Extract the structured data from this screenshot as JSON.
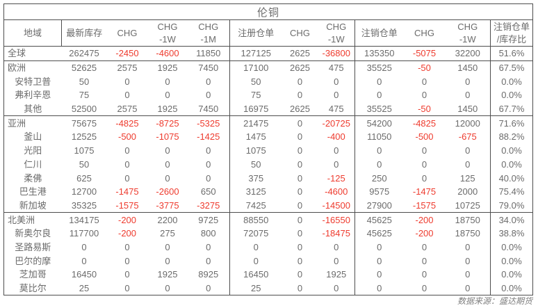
{
  "title": "伦铜",
  "source_note": "数据来源：盛达期货",
  "colors": {
    "text": "#6b6b6b",
    "negative": "#ee3b2e",
    "border": "#4d4d4d"
  },
  "chart_data": {
    "type": "table",
    "title": "伦铜",
    "columns": [
      "地域",
      "最新库存",
      "CHG",
      "CHG -1W",
      "CHG -1M",
      "注册仓单",
      "CHG",
      "CHG -1W",
      "注销仓单",
      "CHG",
      "CHG -1W",
      "注销仓单/库存比"
    ]
  },
  "table": {
    "columns": [
      {
        "label": "地域"
      },
      {
        "label": "最新库存"
      },
      {
        "label": "CHG"
      },
      {
        "label": "CHG\n-1W"
      },
      {
        "label": "CHG\n-1M"
      },
      {
        "label": "注册仓单"
      },
      {
        "label": "CHG"
      },
      {
        "label": "CHG\n-1W"
      },
      {
        "label": "注销仓单"
      },
      {
        "label": "CHG"
      },
      {
        "label": "CHG\n-1W"
      },
      {
        "label": "注销仓单\n/库存比"
      }
    ],
    "rows": [
      {
        "region": "全球",
        "level": 0,
        "section_start": false,
        "values": [
          "262475",
          "-2450",
          "-4600",
          "11850",
          "127125",
          "2625",
          "-36800",
          "135350",
          "-5075",
          "32200",
          "51.6%"
        ]
      },
      {
        "region": "欧洲",
        "level": 0,
        "section_start": true,
        "values": [
          "52625",
          "2575",
          "1925",
          "7450",
          "17100",
          "2625",
          "475",
          "35525",
          "-50",
          "1450",
          "67.5%"
        ]
      },
      {
        "region": "安特卫普",
        "level": 1,
        "section_start": false,
        "values": [
          "50",
          "0",
          "0",
          "0",
          "50",
          "0",
          "0",
          "0",
          "0",
          "0",
          "0.0%"
        ]
      },
      {
        "region": "弗利辛恩",
        "level": 1,
        "section_start": false,
        "values": [
          "75",
          "0",
          "0",
          "0",
          "75",
          "0",
          "0",
          "0",
          "0",
          "0",
          "0.0%"
        ]
      },
      {
        "region": "其他",
        "level": 1,
        "section_start": false,
        "values": [
          "52500",
          "2575",
          "1925",
          "7450",
          "16975",
          "2625",
          "475",
          "35525",
          "-50",
          "1450",
          "67.7%"
        ]
      },
      {
        "region": "亚洲",
        "level": 0,
        "section_start": true,
        "values": [
          "75675",
          "-4825",
          "-8725",
          "-5325",
          "21475",
          "0",
          "-20725",
          "54200",
          "-4825",
          "12000",
          "71.6%"
        ]
      },
      {
        "region": "釜山",
        "level": 1,
        "section_start": false,
        "values": [
          "12525",
          "-500",
          "-1075",
          "-1425",
          "1475",
          "0",
          "-400",
          "11050",
          "-500",
          "-675",
          "88.2%"
        ]
      },
      {
        "region": "光阳",
        "level": 1,
        "section_start": false,
        "values": [
          "1075",
          "0",
          "0",
          "0",
          "1075",
          "0",
          "0",
          "0",
          "0",
          "0",
          "0.0%"
        ]
      },
      {
        "region": "仁川",
        "level": 1,
        "section_start": false,
        "values": [
          "50",
          "0",
          "0",
          "0",
          "50",
          "0",
          "0",
          "0",
          "0",
          "0",
          "0.0%"
        ]
      },
      {
        "region": "柔佛",
        "level": 1,
        "section_start": false,
        "values": [
          "625",
          "0",
          "0",
          "0",
          "375",
          "0",
          "-125",
          "250",
          "0",
          "125",
          "40.0%"
        ]
      },
      {
        "region": "巴生港",
        "level": 1,
        "section_start": false,
        "values": [
          "12700",
          "-1475",
          "-2600",
          "650",
          "3125",
          "0",
          "-4600",
          "9575",
          "-1475",
          "2000",
          "75.4%"
        ]
      },
      {
        "region": "新加坡",
        "level": 1,
        "section_start": false,
        "values": [
          "35325",
          "-1575",
          "-3775",
          "-3275",
          "7425",
          "0",
          "-14500",
          "27900",
          "-1575",
          "10725",
          "79.0%"
        ]
      },
      {
        "region": "北美洲",
        "level": 0,
        "section_start": true,
        "values": [
          "134175",
          "-200",
          "2200",
          "9725",
          "88550",
          "0",
          "-16550",
          "45625",
          "-200",
          "18750",
          "34.0%"
        ]
      },
      {
        "region": "新奥尔良",
        "level": 1,
        "section_start": false,
        "values": [
          "117700",
          "-200",
          "275",
          "800",
          "72075",
          "0",
          "-18475",
          "45625",
          "-200",
          "18750",
          "38.8%"
        ]
      },
      {
        "region": "圣路易斯",
        "level": 1,
        "section_start": false,
        "values": [
          "0",
          "0",
          "0",
          "0",
          "0",
          "0",
          "0",
          "0",
          "0",
          "0",
          "0.0%"
        ]
      },
      {
        "region": "巴尔的摩",
        "level": 1,
        "section_start": false,
        "values": [
          "0",
          "0",
          "0",
          "0",
          "0",
          "0",
          "0",
          "0",
          "0",
          "0",
          "0.0%"
        ]
      },
      {
        "region": "芝加哥",
        "level": 1,
        "section_start": false,
        "values": [
          "16450",
          "0",
          "1925",
          "8925",
          "16450",
          "0",
          "1925",
          "0",
          "0",
          "0",
          "0.0%"
        ]
      },
      {
        "region": "莫比尔",
        "level": 1,
        "section_start": false,
        "values": [
          "25",
          "0",
          "0",
          "0",
          "25",
          "0",
          "0",
          "0",
          "0",
          "0",
          "0.0%"
        ]
      }
    ]
  }
}
